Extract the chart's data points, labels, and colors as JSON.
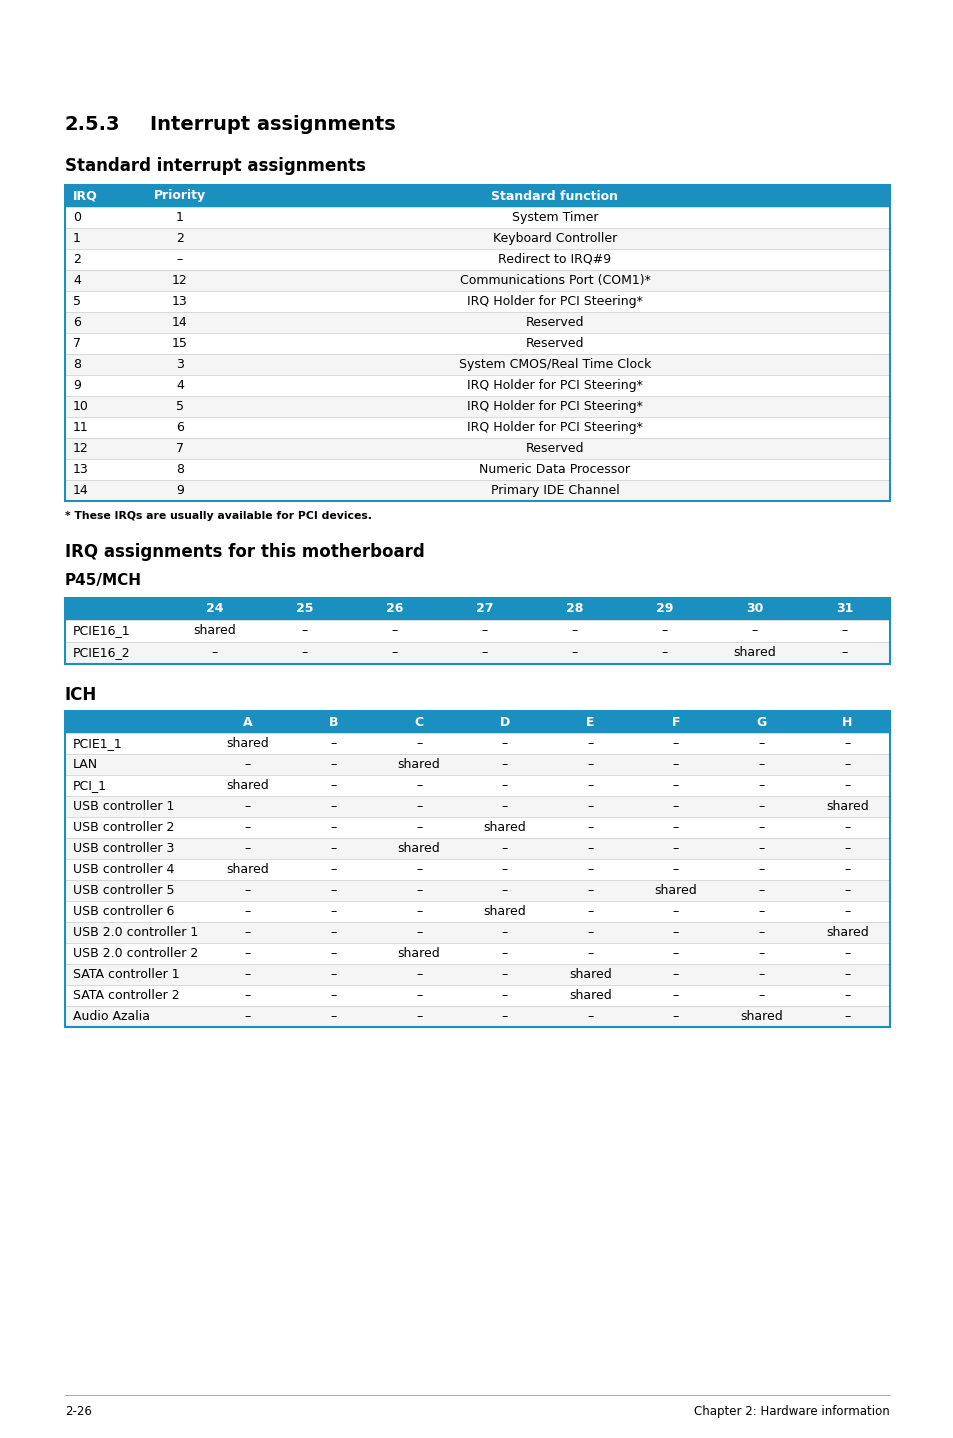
{
  "title_section_num": "2.5.3",
  "title_section_text": "Interrupt assignments",
  "subtitle1": "Standard interrupt assignments",
  "header_color": "#1a8fc0",
  "header_text_color": "#ffffff",
  "row_color": "#ffffff",
  "border_color": "#1a8fc0",
  "grid_color": "#cccccc",
  "std_table_headers": [
    "IRQ",
    "Priority",
    "Standard function"
  ],
  "std_table_data": [
    [
      "0",
      "1",
      "System Timer"
    ],
    [
      "1",
      "2",
      "Keyboard Controller"
    ],
    [
      "2",
      "–",
      "Redirect to IRQ#9"
    ],
    [
      "4",
      "12",
      "Communications Port (COM1)*"
    ],
    [
      "5",
      "13",
      "IRQ Holder for PCI Steering*"
    ],
    [
      "6",
      "14",
      "Reserved"
    ],
    [
      "7",
      "15",
      "Reserved"
    ],
    [
      "8",
      "3",
      "System CMOS/Real Time Clock"
    ],
    [
      "9",
      "4",
      "IRQ Holder for PCI Steering*"
    ],
    [
      "10",
      "5",
      "IRQ Holder for PCI Steering*"
    ],
    [
      "11",
      "6",
      "IRQ Holder for PCI Steering*"
    ],
    [
      "12",
      "7",
      "Reserved"
    ],
    [
      "13",
      "8",
      "Numeric Data Processor"
    ],
    [
      "14",
      "9",
      "Primary IDE Channel"
    ]
  ],
  "footnote": "* These IRQs are usually available for PCI devices.",
  "subtitle2": "IRQ assignments for this motherboard",
  "subtitle2b": "P45/MCH",
  "p45_headers": [
    "",
    "24",
    "25",
    "26",
    "27",
    "28",
    "29",
    "30",
    "31"
  ],
  "p45_data": [
    [
      "PCIE16_1",
      "shared",
      "–",
      "–",
      "–",
      "–",
      "–",
      "–",
      "–"
    ],
    [
      "PCIE16_2",
      "–",
      "–",
      "–",
      "–",
      "–",
      "–",
      "shared",
      "–"
    ]
  ],
  "subtitle3": "ICH",
  "ich_headers": [
    "",
    "A",
    "B",
    "C",
    "D",
    "E",
    "F",
    "G",
    "H"
  ],
  "ich_data": [
    [
      "PCIE1_1",
      "shared",
      "–",
      "–",
      "–",
      "–",
      "–",
      "–",
      "–"
    ],
    [
      "LAN",
      "–",
      "–",
      "shared",
      "–",
      "–",
      "–",
      "–",
      "–"
    ],
    [
      "PCI_1",
      "shared",
      "–",
      "–",
      "–",
      "–",
      "–",
      "–",
      "–"
    ],
    [
      "USB controller 1",
      "–",
      "–",
      "–",
      "–",
      "–",
      "–",
      "–",
      "shared"
    ],
    [
      "USB controller 2",
      "–",
      "–",
      "–",
      "shared",
      "–",
      "–",
      "–",
      "–"
    ],
    [
      "USB controller 3",
      "–",
      "–",
      "shared",
      "–",
      "–",
      "–",
      "–",
      "–"
    ],
    [
      "USB controller 4",
      "shared",
      "–",
      "–",
      "–",
      "–",
      "–",
      "–",
      "–"
    ],
    [
      "USB controller 5",
      "–",
      "–",
      "–",
      "–",
      "–",
      "shared",
      "–",
      "–"
    ],
    [
      "USB controller 6",
      "–",
      "–",
      "–",
      "shared",
      "–",
      "–",
      "–",
      "–"
    ],
    [
      "USB 2.0 controller 1",
      "–",
      "–",
      "–",
      "–",
      "–",
      "–",
      "–",
      "shared"
    ],
    [
      "USB 2.0 controller 2",
      "–",
      "–",
      "shared",
      "–",
      "–",
      "–",
      "–",
      "–"
    ],
    [
      "SATA controller 1",
      "–",
      "–",
      "–",
      "–",
      "shared",
      "–",
      "–",
      "–"
    ],
    [
      "SATA controller 2",
      "–",
      "–",
      "–",
      "–",
      "shared",
      "–",
      "–",
      "–"
    ],
    [
      "Audio Azalia",
      "–",
      "–",
      "–",
      "–",
      "–",
      "–",
      "shared",
      "–"
    ]
  ],
  "footer_left": "2-26",
  "footer_right": "Chapter 2: Hardware information",
  "background_color": "#ffffff"
}
